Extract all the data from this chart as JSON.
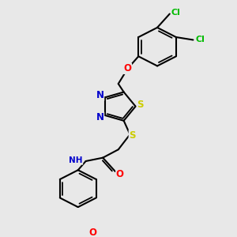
{
  "bg_color": "#e8e8e8",
  "bond_color": "#000000",
  "bond_width": 1.5,
  "atom_colors": {
    "N": "#0000cc",
    "S": "#cccc00",
    "O": "#ff0000",
    "Cl": "#00bb00",
    "C": "#000000",
    "H": "#447777"
  },
  "font_size_atom": 8.5,
  "font_size_cl": 8,
  "font_size_h": 7.5
}
